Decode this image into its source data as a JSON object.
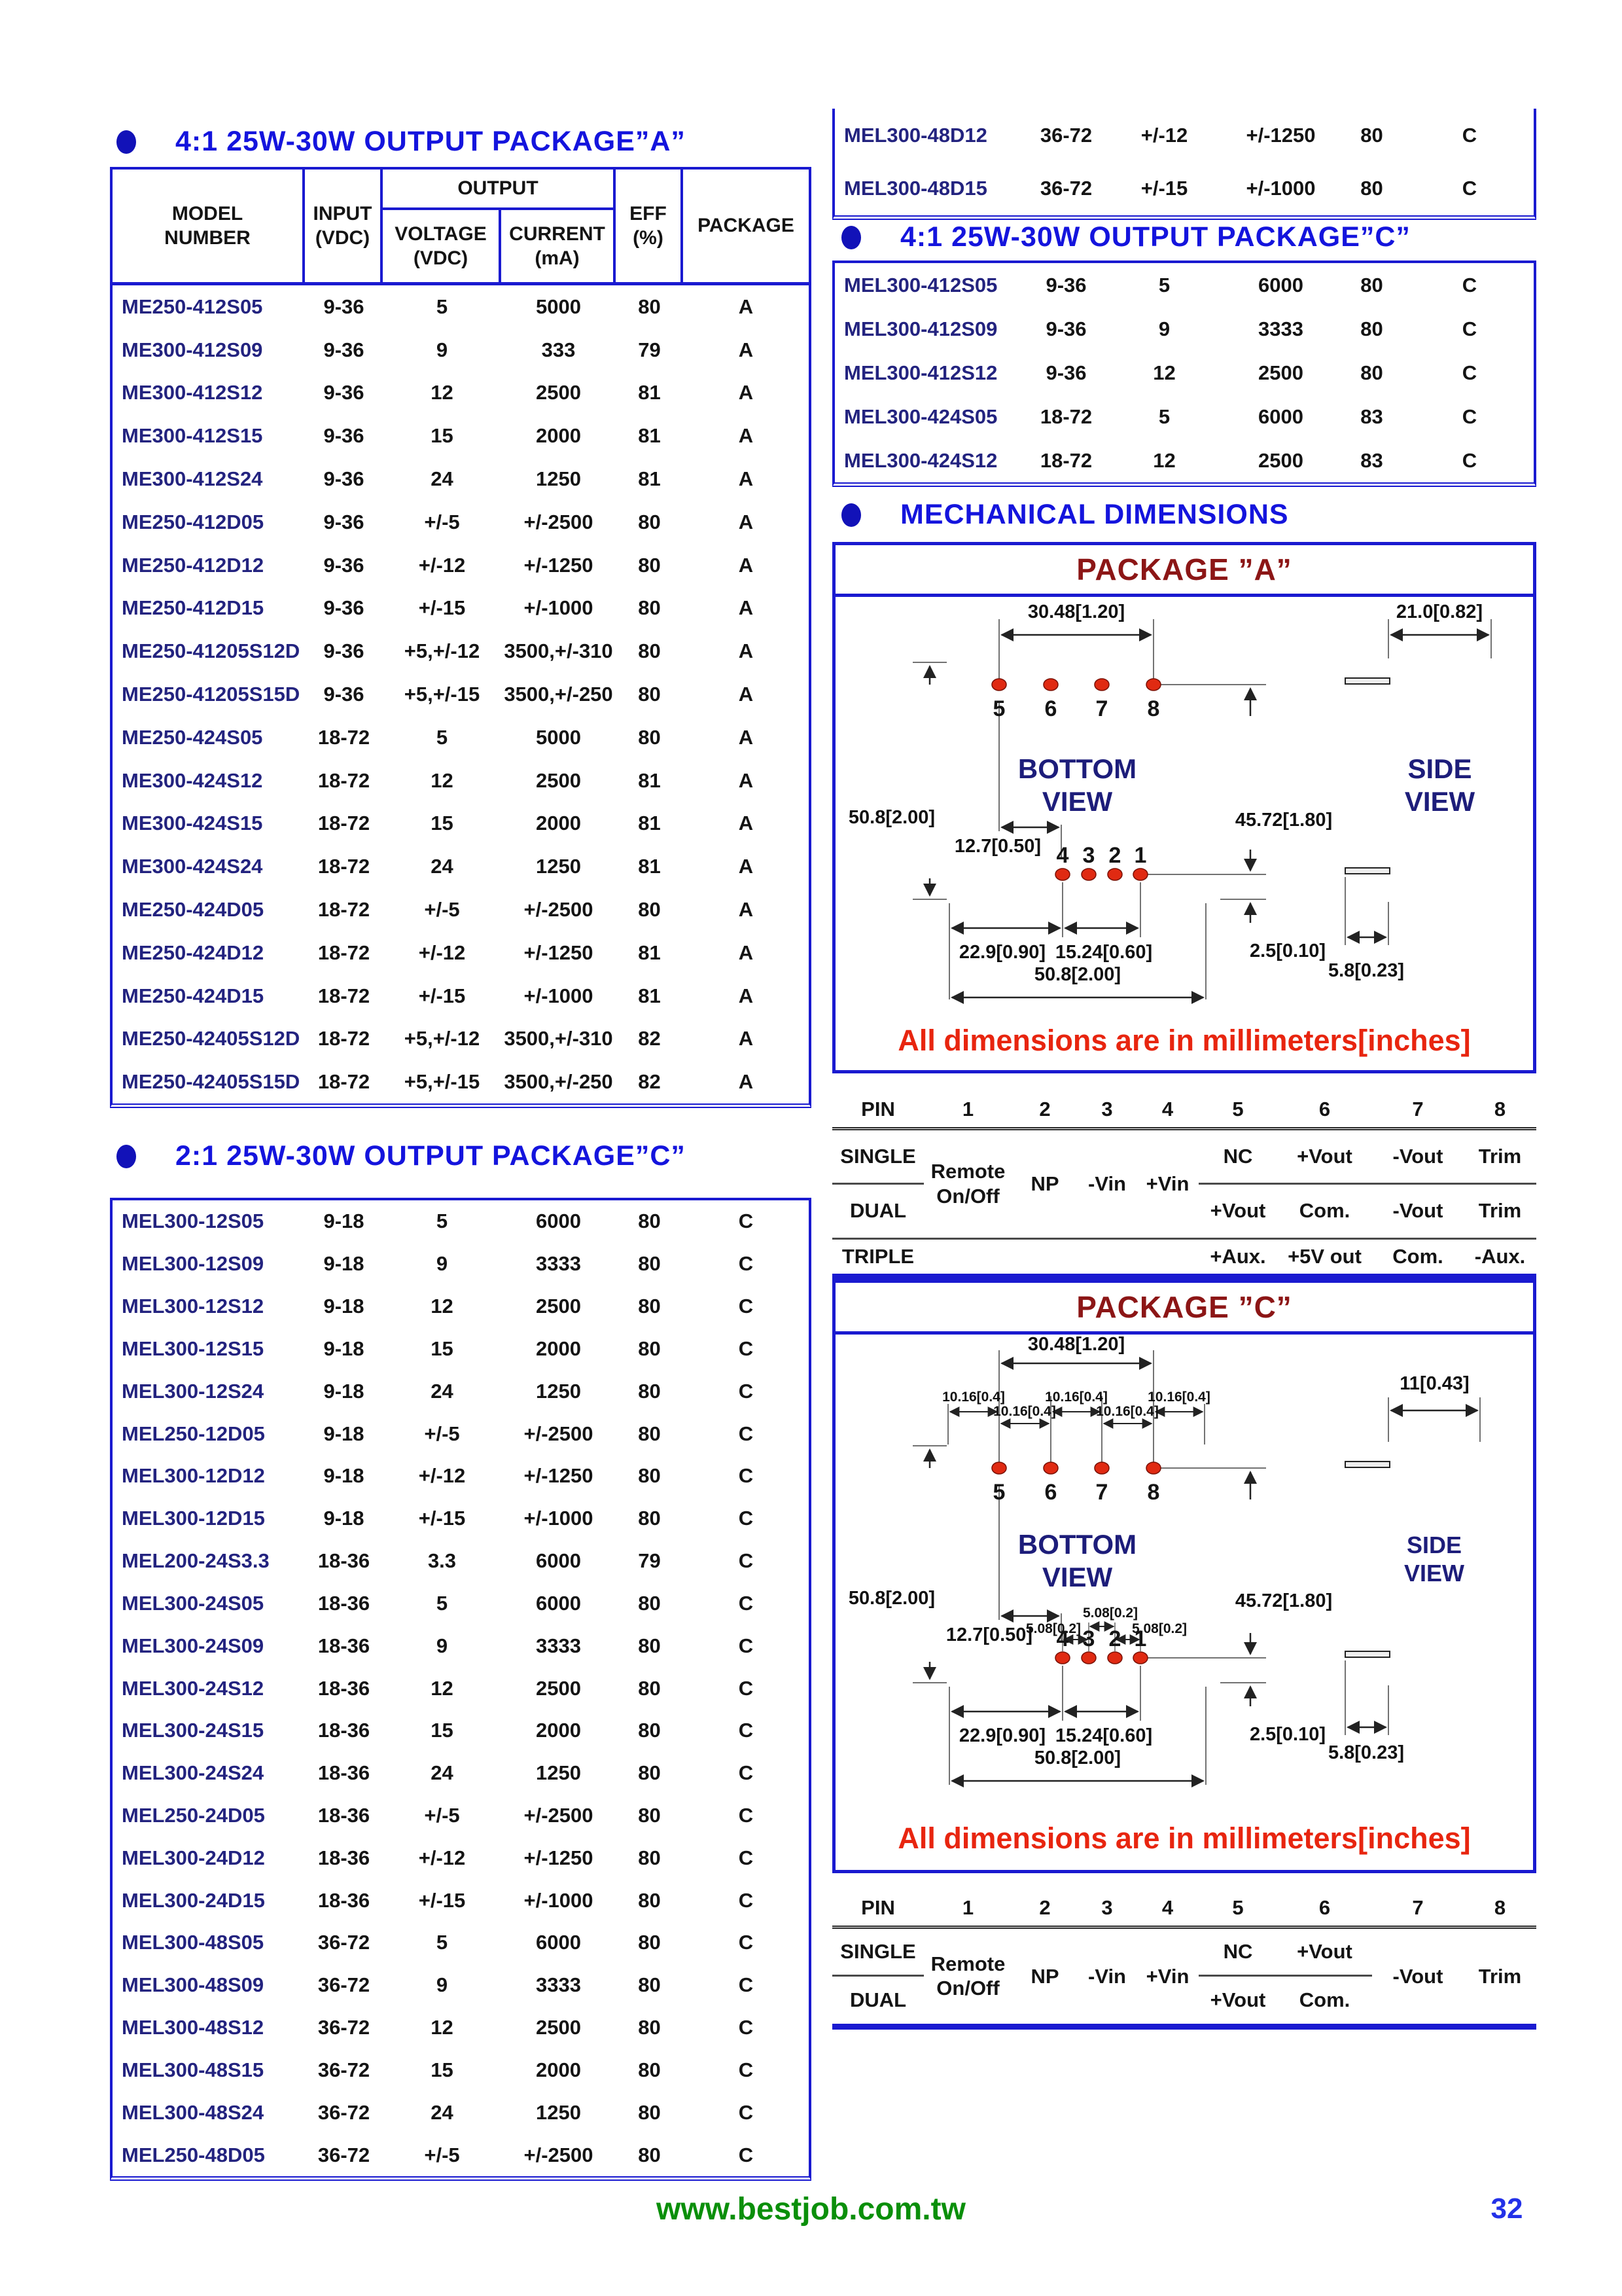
{
  "page": {
    "number": "32",
    "website": "www.bestjob.com.tw"
  },
  "colors": {
    "table_border": "#1a1ad0",
    "title_blue": "#1414dd",
    "model_navy": "#23237f",
    "pkg_title_maroon": "#8c1616",
    "note_red": "#e8250f",
    "module_fill": "#f7f7cf",
    "pin_red": "#e02a12",
    "site_green": "#0a8f0a"
  },
  "spec_header": {
    "model": "MODEL\nNUMBER",
    "input": "INPUT\n(VDC)",
    "output": "OUTPUT",
    "voltage": "VOLTAGE\n(VDC)",
    "current": "CURRENT\n(mA)",
    "eff": "EFF\n(%)",
    "pkg": "PACKAGE"
  },
  "table_a_4to1": {
    "title": "4:1 25W-30W OUTPUT PACKAGE”A”",
    "rows": [
      {
        "model": "ME250-412S05",
        "input": "9-36",
        "voltage": "5",
        "current": "5000",
        "eff": "80",
        "pkg": "A"
      },
      {
        "model": "ME300-412S09",
        "input": "9-36",
        "voltage": "9",
        "current": "333",
        "eff": "79",
        "pkg": "A"
      },
      {
        "model": "ME300-412S12",
        "input": "9-36",
        "voltage": "12",
        "current": "2500",
        "eff": "81",
        "pkg": "A"
      },
      {
        "model": "ME300-412S15",
        "input": "9-36",
        "voltage": "15",
        "current": "2000",
        "eff": "81",
        "pkg": "A"
      },
      {
        "model": "ME300-412S24",
        "input": "9-36",
        "voltage": "24",
        "current": "1250",
        "eff": "81",
        "pkg": "A"
      },
      {
        "model": "ME250-412D05",
        "input": "9-36",
        "voltage": "+/-5",
        "current": "+/-2500",
        "eff": "80",
        "pkg": "A"
      },
      {
        "model": "ME250-412D12",
        "input": "9-36",
        "voltage": "+/-12",
        "current": "+/-1250",
        "eff": "80",
        "pkg": "A"
      },
      {
        "model": "ME250-412D15",
        "input": "9-36",
        "voltage": "+/-15",
        "current": "+/-1000",
        "eff": "80",
        "pkg": "A"
      },
      {
        "model": "ME250-41205S12D",
        "input": "9-36",
        "voltage": "+5,+/-12",
        "current": "3500,+/-310",
        "eff": "80",
        "pkg": "A"
      },
      {
        "model": "ME250-41205S15D",
        "input": "9-36",
        "voltage": "+5,+/-15",
        "current": "3500,+/-250",
        "eff": "80",
        "pkg": "A"
      },
      {
        "model": "ME250-424S05",
        "input": "18-72",
        "voltage": "5",
        "current": "5000",
        "eff": "80",
        "pkg": "A"
      },
      {
        "model": "ME300-424S12",
        "input": "18-72",
        "voltage": "12",
        "current": "2500",
        "eff": "81",
        "pkg": "A"
      },
      {
        "model": "ME300-424S15",
        "input": "18-72",
        "voltage": "15",
        "current": "2000",
        "eff": "81",
        "pkg": "A"
      },
      {
        "model": "ME300-424S24",
        "input": "18-72",
        "voltage": "24",
        "current": "1250",
        "eff": "81",
        "pkg": "A"
      },
      {
        "model": "ME250-424D05",
        "input": "18-72",
        "voltage": "+/-5",
        "current": "+/-2500",
        "eff": "80",
        "pkg": "A"
      },
      {
        "model": "ME250-424D12",
        "input": "18-72",
        "voltage": "+/-12",
        "current": "+/-1250",
        "eff": "81",
        "pkg": "A"
      },
      {
        "model": "ME250-424D15",
        "input": "18-72",
        "voltage": "+/-15",
        "current": "+/-1000",
        "eff": "81",
        "pkg": "A"
      },
      {
        "model": "ME250-42405S12D",
        "input": "18-72",
        "voltage": "+5,+/-12",
        "current": "3500,+/-310",
        "eff": "82",
        "pkg": "A"
      },
      {
        "model": "ME250-42405S15D",
        "input": "18-72",
        "voltage": "+5,+/-15",
        "current": "3500,+/-250",
        "eff": "82",
        "pkg": "A"
      }
    ]
  },
  "table_c_2to1": {
    "title": "2:1 25W-30W OUTPUT PACKAGE”C”",
    "rows": [
      {
        "model": "MEL300-12S05",
        "input": "9-18",
        "voltage": "5",
        "current": "6000",
        "eff": "80",
        "pkg": "C"
      },
      {
        "model": "MEL300-12S09",
        "input": "9-18",
        "voltage": "9",
        "current": "3333",
        "eff": "80",
        "pkg": "C"
      },
      {
        "model": "MEL300-12S12",
        "input": "9-18",
        "voltage": "12",
        "current": "2500",
        "eff": "80",
        "pkg": "C"
      },
      {
        "model": "MEL300-12S15",
        "input": "9-18",
        "voltage": "15",
        "current": "2000",
        "eff": "80",
        "pkg": "C"
      },
      {
        "model": "MEL300-12S24",
        "input": "9-18",
        "voltage": "24",
        "current": "1250",
        "eff": "80",
        "pkg": "C"
      },
      {
        "model": "MEL250-12D05",
        "input": "9-18",
        "voltage": "+/-5",
        "current": "+/-2500",
        "eff": "80",
        "pkg": "C"
      },
      {
        "model": "MEL300-12D12",
        "input": "9-18",
        "voltage": "+/-12",
        "current": "+/-1250",
        "eff": "80",
        "pkg": "C"
      },
      {
        "model": "MEL300-12D15",
        "input": "9-18",
        "voltage": "+/-15",
        "current": "+/-1000",
        "eff": "80",
        "pkg": "C"
      },
      {
        "model": "MEL200-24S3.3",
        "input": "18-36",
        "voltage": "3.3",
        "current": "6000",
        "eff": "79",
        "pkg": "C"
      },
      {
        "model": "MEL300-24S05",
        "input": "18-36",
        "voltage": "5",
        "current": "6000",
        "eff": "80",
        "pkg": "C"
      },
      {
        "model": "MEL300-24S09",
        "input": "18-36",
        "voltage": "9",
        "current": "3333",
        "eff": "80",
        "pkg": "C"
      },
      {
        "model": "MEL300-24S12",
        "input": "18-36",
        "voltage": "12",
        "current": "2500",
        "eff": "80",
        "pkg": "C"
      },
      {
        "model": "MEL300-24S15",
        "input": "18-36",
        "voltage": "15",
        "current": "2000",
        "eff": "80",
        "pkg": "C"
      },
      {
        "model": "MEL300-24S24",
        "input": "18-36",
        "voltage": "24",
        "current": "1250",
        "eff": "80",
        "pkg": "C"
      },
      {
        "model": "MEL250-24D05",
        "input": "18-36",
        "voltage": "+/-5",
        "current": "+/-2500",
        "eff": "80",
        "pkg": "C"
      },
      {
        "model": "MEL300-24D12",
        "input": "18-36",
        "voltage": "+/-12",
        "current": "+/-1250",
        "eff": "80",
        "pkg": "C"
      },
      {
        "model": "MEL300-24D15",
        "input": "18-36",
        "voltage": "+/-15",
        "current": "+/-1000",
        "eff": "80",
        "pkg": "C"
      },
      {
        "model": "MEL300-48S05",
        "input": "36-72",
        "voltage": "5",
        "current": "6000",
        "eff": "80",
        "pkg": "C"
      },
      {
        "model": "MEL300-48S09",
        "input": "36-72",
        "voltage": "9",
        "current": "3333",
        "eff": "80",
        "pkg": "C"
      },
      {
        "model": "MEL300-48S12",
        "input": "36-72",
        "voltage": "12",
        "current": "2500",
        "eff": "80",
        "pkg": "C"
      },
      {
        "model": "MEL300-48S15",
        "input": "36-72",
        "voltage": "15",
        "current": "2000",
        "eff": "80",
        "pkg": "C"
      },
      {
        "model": "MEL300-48S24",
        "input": "36-72",
        "voltage": "24",
        "current": "1250",
        "eff": "80",
        "pkg": "C"
      },
      {
        "model": "MEL250-48D05",
        "input": "36-72",
        "voltage": "+/-5",
        "current": "+/-2500",
        "eff": "80",
        "pkg": "C"
      }
    ]
  },
  "table_right_cont": {
    "rows": [
      {
        "model": "MEL300-48D12",
        "input": "36-72",
        "voltage": "+/-12",
        "current": "+/-1250",
        "eff": "80",
        "pkg": "C"
      },
      {
        "model": "MEL300-48D15",
        "input": "36-72",
        "voltage": "+/-15",
        "current": "+/-1000",
        "eff": "80",
        "pkg": "C"
      }
    ]
  },
  "table_c_4to1": {
    "title": "4:1 25W-30W OUTPUT PACKAGE”C”",
    "rows": [
      {
        "model": "MEL300-412S05",
        "input": "9-36",
        "voltage": "5",
        "current": "6000",
        "eff": "80",
        "pkg": "C"
      },
      {
        "model": "MEL300-412S09",
        "input": "9-36",
        "voltage": "9",
        "current": "3333",
        "eff": "80",
        "pkg": "C"
      },
      {
        "model": "MEL300-412S12",
        "input": "9-36",
        "voltage": "12",
        "current": "2500",
        "eff": "80",
        "pkg": "C"
      },
      {
        "model": "MEL300-424S05",
        "input": "18-72",
        "voltage": "5",
        "current": "6000",
        "eff": "83",
        "pkg": "C"
      },
      {
        "model": "MEL300-424S12",
        "input": "18-72",
        "voltage": "12",
        "current": "2500",
        "eff": "83",
        "pkg": "C"
      }
    ]
  },
  "mech": {
    "title": "MECHANICAL DIMENSIONS",
    "note": "All dimensions are in millimeters[inches]",
    "package_a": {
      "title": "PACKAGE ”A”",
      "bottom_view": "BOTTOM\nVIEW",
      "side_view": "SIDE\nVIEW",
      "pins_top": [
        "5",
        "6",
        "7",
        "8"
      ],
      "pins_bottom": [
        "4",
        "3",
        "2",
        "1"
      ],
      "dims": {
        "top_span": "30.48[1.20]",
        "left": "50.8[2.00]",
        "right": "45.72[1.80]",
        "inner": "12.7[0.50]",
        "bottom_left": "22.9[0.90]",
        "bottom_mid": "15.24[0.60]",
        "pin_offset": "2.5[0.10]",
        "bottom_full": "50.8[2.00]",
        "side_width": "21.0[0.82]",
        "side_pin": "5.8[0.23]"
      }
    },
    "package_c": {
      "title": "PACKAGE ”C”",
      "bottom_view": "BOTTOM\nVIEW",
      "side_view": "SIDE\nVIEW",
      "pins_top": [
        "5",
        "6",
        "7",
        "8"
      ],
      "pins_bottom": [
        "4",
        "3",
        "2",
        "1"
      ],
      "pitch_labels": [
        "10.16[0.4]",
        "10.16[0.4]",
        "10.16[0.4]",
        "10.16[0.4]",
        "10.16[0.4]"
      ],
      "inner_small": [
        "5.08[0.2]",
        "5.08[0.2]",
        "5.08[0.2]"
      ],
      "dims": {
        "top_span": "30.48[1.20]",
        "left": "50.8[2.00]",
        "right": "45.72[1.80]",
        "inner": "12.7[0.50]",
        "bottom_left": "22.9[0.90]",
        "bottom_mid": "15.24[0.60]",
        "pin_offset": "2.5[0.10]",
        "bottom_full": "50.8[2.00]",
        "side_width": "11[0.43]",
        "side_pin": "5.8[0.23]"
      }
    }
  },
  "pin_a": {
    "header": [
      "PIN",
      "1",
      "2",
      "3",
      "4",
      "5",
      "6",
      "7",
      "8"
    ],
    "labels": {
      "single": "SINGLE",
      "dual": "DUAL",
      "triple": "TRIPLE"
    },
    "shared": {
      "p1": "Remote\nOn/Off",
      "p2": "NP",
      "p3": "-Vin",
      "p4": "+Vin"
    },
    "single": {
      "p5": "NC",
      "p6": "+Vout",
      "p7": "-Vout",
      "p8": "Trim"
    },
    "dual": {
      "p5": "+Vout",
      "p6": "Com.",
      "p7": "-Vout",
      "p8": "Trim"
    },
    "triple": {
      "p5": "+Aux.",
      "p6": "+5V out",
      "p7": "Com.",
      "p8": "-Aux."
    }
  },
  "pin_c": {
    "header": [
      "PIN",
      "1",
      "2",
      "3",
      "4",
      "5",
      "6",
      "7",
      "8"
    ],
    "labels": {
      "single": "SINGLE",
      "dual": "DUAL"
    },
    "shared": {
      "p1": "Remote\nOn/Off",
      "p2": "NP",
      "p3": "-Vin",
      "p4": "+Vin",
      "p7": "-Vout",
      "p8": "Trim"
    },
    "single": {
      "p5": "NC",
      "p6": "+Vout"
    },
    "dual": {
      "p5": "+Vout",
      "p6": "Com."
    }
  }
}
